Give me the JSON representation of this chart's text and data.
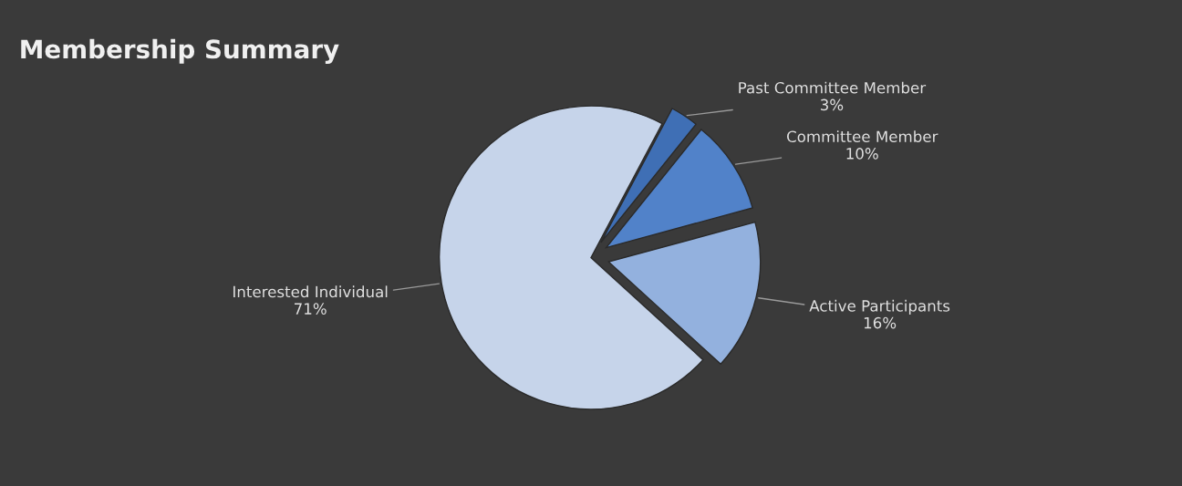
{
  "chart_data": {
    "type": "pie",
    "title": "Membership Summary",
    "categories": [
      "Past Committee Member",
      "Committee Member",
      "Active Participants",
      "Interested Individual"
    ],
    "values": [
      3,
      10,
      16,
      71
    ],
    "value_labels": [
      "3%",
      "10%",
      "16%",
      "71%"
    ],
    "colors": [
      "#3f6fb5",
      "#5182c9",
      "#93b1de",
      "#c6d4ea"
    ],
    "legend": false
  }
}
